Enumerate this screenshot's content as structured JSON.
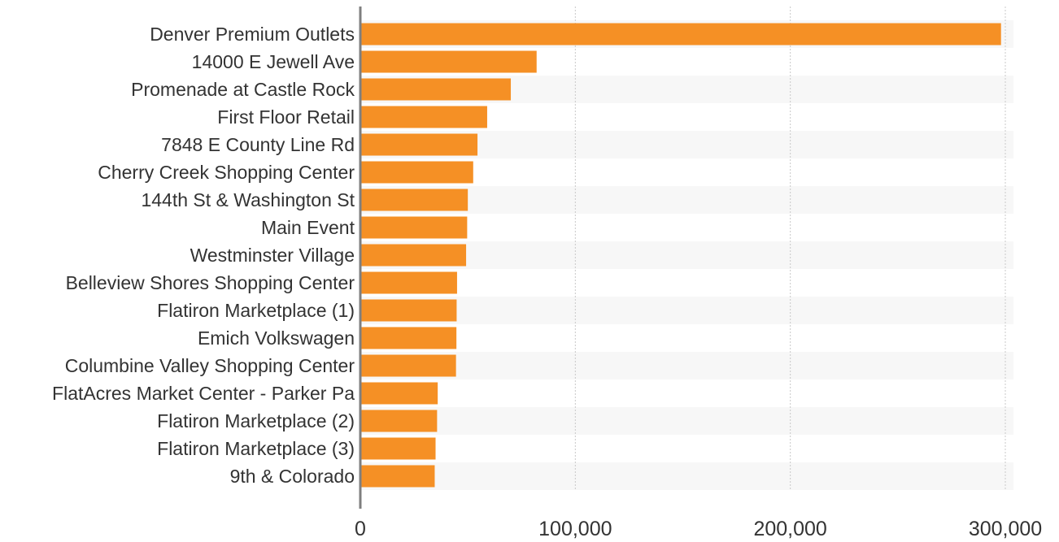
{
  "chart_data": {
    "type": "bar",
    "orientation": "horizontal",
    "categories": [
      "Denver Premium Outlets",
      "14000 E Jewell Ave",
      "Promenade at Castle Rock",
      "First Floor Retail",
      "7848 E County Line Rd",
      "Cherry Creek Shopping Center",
      "144th St & Washington St",
      "Main Event",
      "Westminster Village",
      "Belleview Shores Shopping Center",
      "Flatiron Marketplace (1)",
      "Emich Volkswagen",
      "Columbine Valley Shopping Center",
      "FlatAcres Market Center - Parker Pa",
      "Flatiron Marketplace (2)",
      "Flatiron Marketplace (3)",
      "9th & Colorado"
    ],
    "values": [
      298000,
      82000,
      70000,
      59000,
      54500,
      52500,
      50000,
      49700,
      49200,
      45000,
      44800,
      44700,
      44500,
      36000,
      35700,
      35000,
      34600
    ],
    "xlim": [
      0,
      300000
    ],
    "xticks": [
      0,
      100000,
      200000,
      300000
    ],
    "xtick_labels": [
      "0",
      "100,000",
      "200,000",
      "300,000"
    ],
    "grid": "vertical dotted",
    "bar_color": "#F59025",
    "band_color": "#F7F7F7",
    "axis_color": "#7F7F7F"
  }
}
